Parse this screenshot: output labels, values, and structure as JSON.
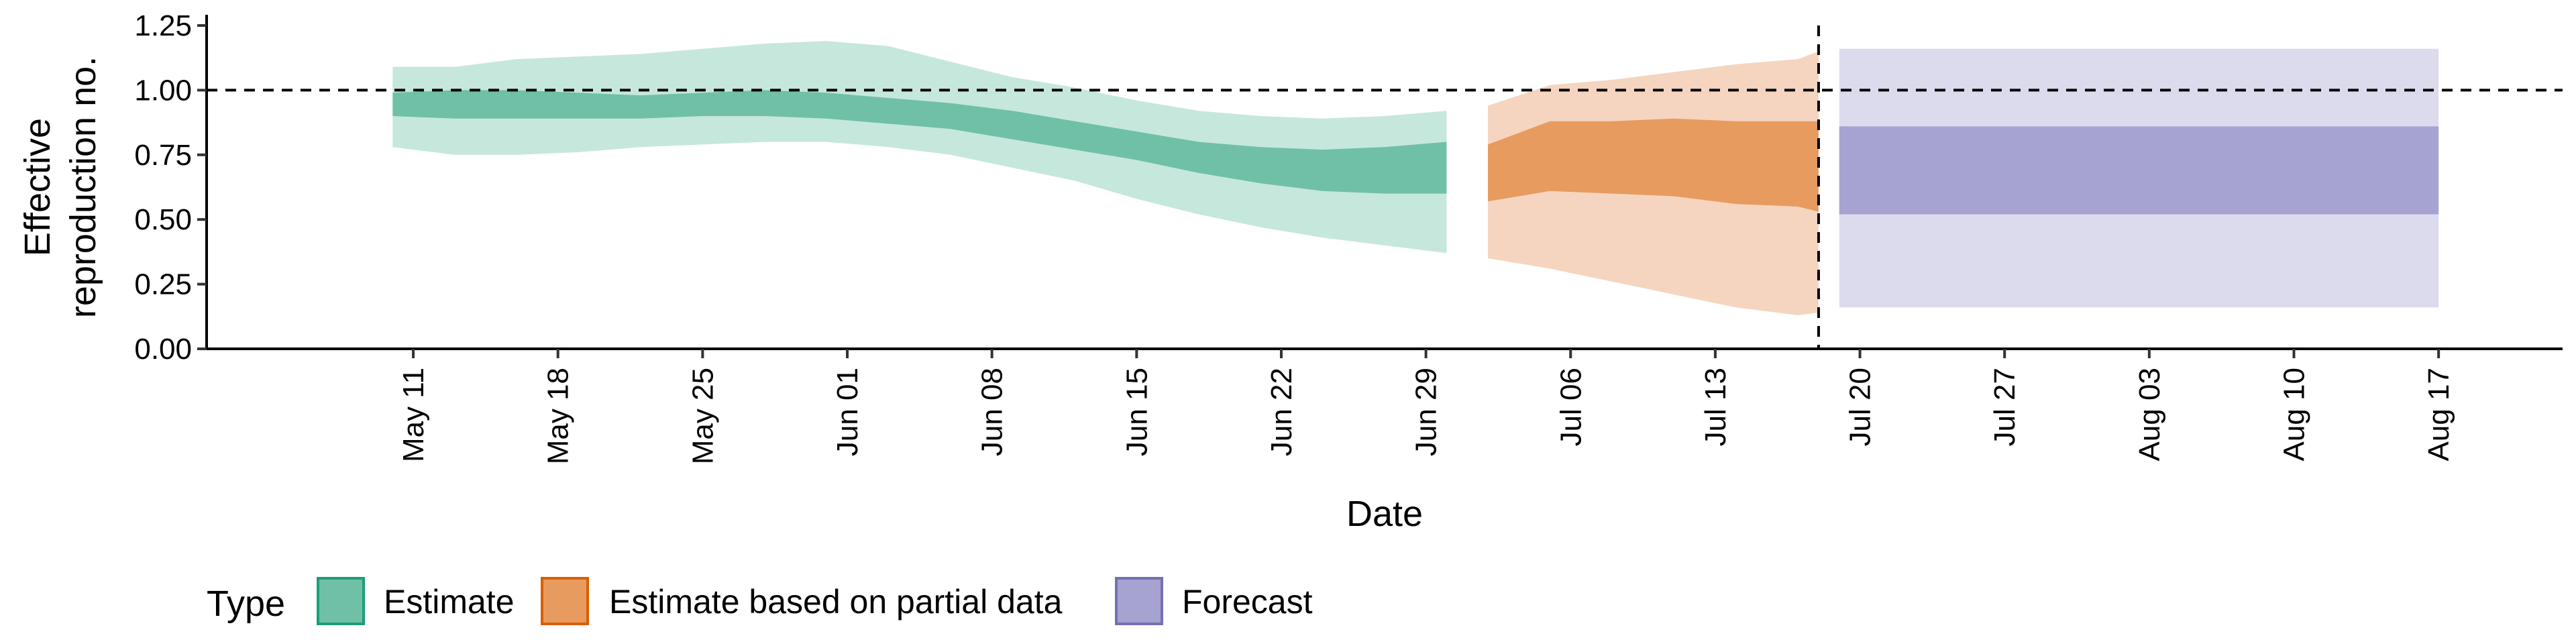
{
  "chart_data": {
    "type": "area",
    "xlabel": "Date",
    "ylabel_lines": [
      "Effective",
      "reproduction no."
    ],
    "xlim": [
      "2021-05-01",
      "2021-08-23"
    ],
    "ylim": [
      0,
      1.25
    ],
    "y_ticks": [
      0,
      0.25,
      0.5,
      0.75,
      1.0,
      1.25
    ],
    "y_tick_labels": [
      "0.00",
      "0.25",
      "0.50",
      "0.75",
      "1.00",
      "1.25"
    ],
    "x_ticks": [
      "2021-05-11",
      "2021-05-18",
      "2021-05-25",
      "2021-06-01",
      "2021-06-08",
      "2021-06-15",
      "2021-06-22",
      "2021-06-29",
      "2021-07-06",
      "2021-07-13",
      "2021-07-20",
      "2021-07-27",
      "2021-08-03",
      "2021-08-10",
      "2021-08-17"
    ],
    "x_tick_labels": [
      "May 11",
      "May 18",
      "May 25",
      "Jun 01",
      "Jun 08",
      "Jun 15",
      "Jun 22",
      "Jun 29",
      "Jul 06",
      "Jul 13",
      "Jul 20",
      "Jul 27",
      "Aug 03",
      "Aug 10",
      "Aug 17"
    ],
    "reference_hline": 1.0,
    "reference_vline": "2021-07-18",
    "grid": false,
    "legend": {
      "title": "Type",
      "position": "bottom",
      "entries": [
        "Estimate",
        "Estimate based on partial data",
        "Forecast"
      ]
    },
    "series": [
      {
        "name": "Estimate",
        "color": "#1b9e77",
        "inner_color": "#6fc0a7",
        "outer_color": "#c6e7dc",
        "dates": [
          "2021-05-10",
          "2021-05-13",
          "2021-05-16",
          "2021-05-19",
          "2021-05-22",
          "2021-05-25",
          "2021-05-28",
          "2021-05-31",
          "2021-06-03",
          "2021-06-06",
          "2021-06-09",
          "2021-06-12",
          "2021-06-15",
          "2021-06-18",
          "2021-06-21",
          "2021-06-24",
          "2021-06-27",
          "2021-06-30"
        ],
        "lower_90": [
          0.78,
          0.75,
          0.75,
          0.76,
          0.78,
          0.79,
          0.8,
          0.8,
          0.78,
          0.75,
          0.7,
          0.65,
          0.58,
          0.52,
          0.47,
          0.43,
          0.4,
          0.37
        ],
        "lower_50": [
          0.9,
          0.89,
          0.89,
          0.89,
          0.89,
          0.9,
          0.9,
          0.89,
          0.87,
          0.85,
          0.81,
          0.77,
          0.73,
          0.68,
          0.64,
          0.61,
          0.6,
          0.6
        ],
        "upper_50": [
          0.99,
          1.0,
          1.0,
          0.99,
          0.98,
          0.99,
          1.0,
          0.99,
          0.97,
          0.95,
          0.92,
          0.88,
          0.84,
          0.8,
          0.78,
          0.77,
          0.78,
          0.8
        ],
        "upper_90": [
          1.09,
          1.09,
          1.12,
          1.13,
          1.14,
          1.16,
          1.18,
          1.19,
          1.17,
          1.11,
          1.05,
          1.01,
          0.96,
          0.92,
          0.9,
          0.89,
          0.9,
          0.92
        ]
      },
      {
        "name": "Estimate based on partial data",
        "color": "#d95f02",
        "inner_color": "#e89b5f",
        "outer_color": "#f5d5bf",
        "dates": [
          "2021-07-02",
          "2021-07-05",
          "2021-07-08",
          "2021-07-11",
          "2021-07-14",
          "2021-07-17",
          "2021-07-18"
        ],
        "lower_90": [
          0.35,
          0.31,
          0.26,
          0.21,
          0.16,
          0.13,
          0.14
        ],
        "lower_50": [
          0.57,
          0.61,
          0.6,
          0.59,
          0.56,
          0.55,
          0.53
        ],
        "upper_50": [
          0.79,
          0.88,
          0.88,
          0.89,
          0.88,
          0.88,
          0.88
        ],
        "upper_90": [
          0.94,
          1.02,
          1.04,
          1.07,
          1.1,
          1.12,
          1.15
        ]
      },
      {
        "name": "Forecast",
        "color": "#7570b3",
        "inner_color": "#a6a3d1",
        "outer_color": "#dcdbed",
        "dates": [
          "2021-07-19",
          "2021-08-17"
        ],
        "lower_90": [
          0.16,
          0.16
        ],
        "lower_50": [
          0.52,
          0.52
        ],
        "upper_50": [
          0.86,
          0.86
        ],
        "upper_90": [
          1.16,
          1.16
        ]
      }
    ]
  }
}
